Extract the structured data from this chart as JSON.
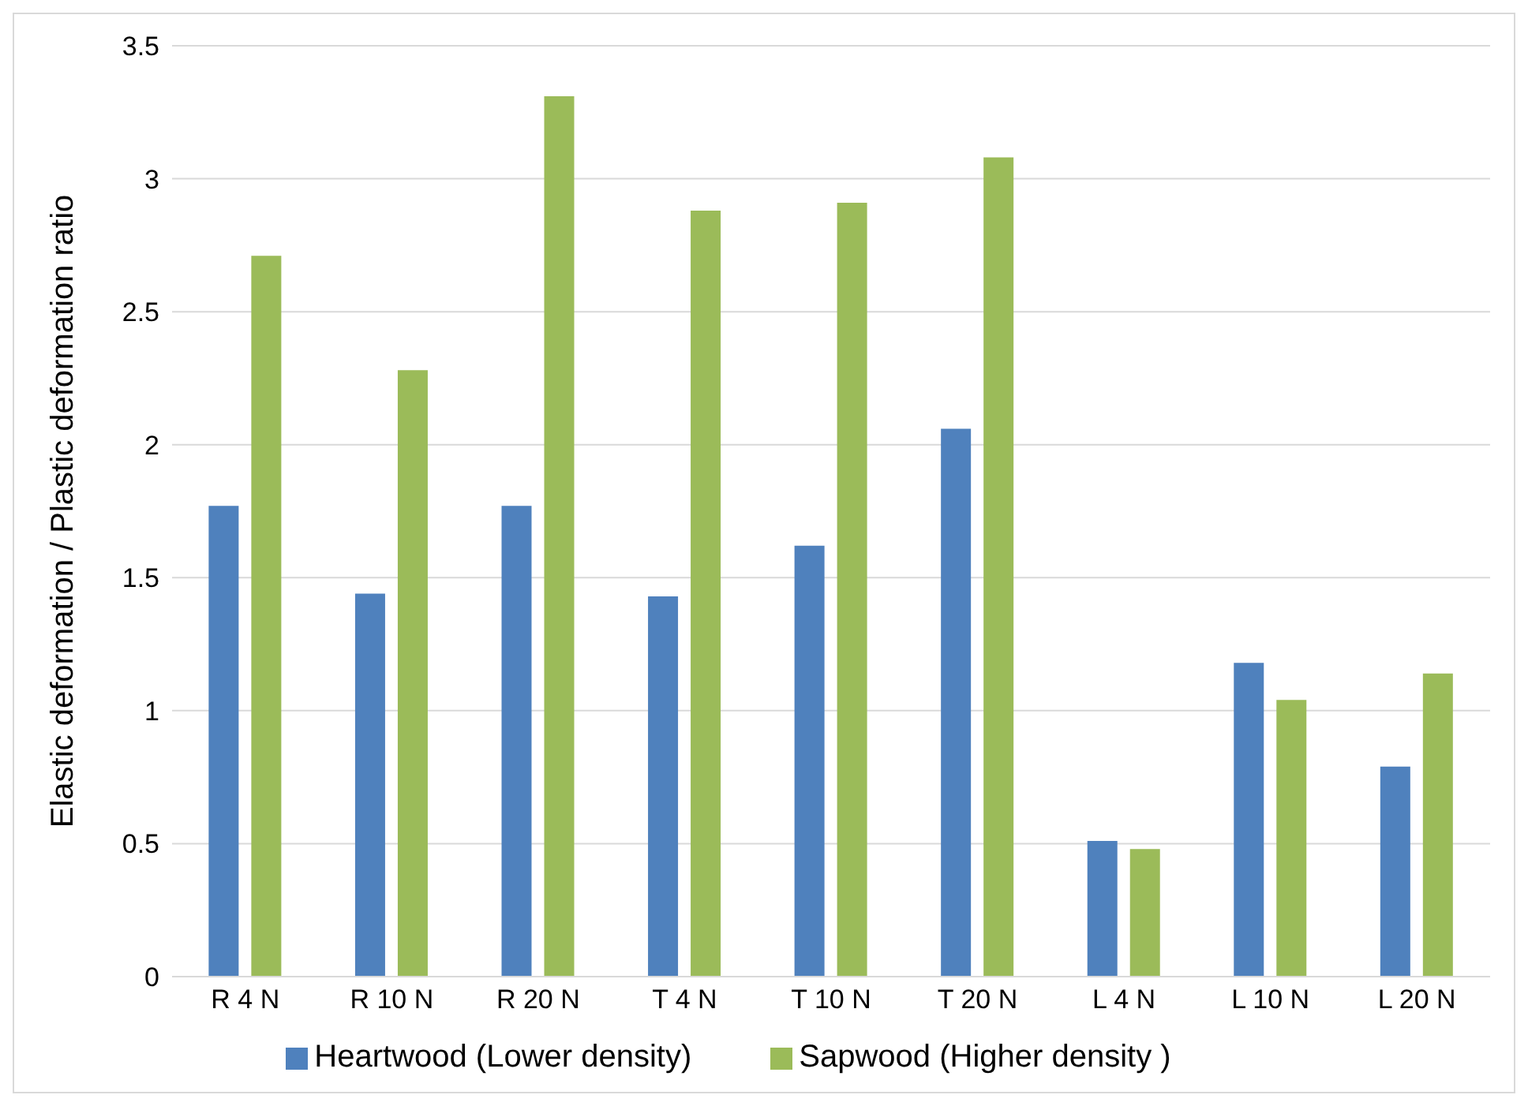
{
  "chart_data": {
    "type": "bar",
    "ylabel": "Elastic deformation / Plastic deformation  ratio",
    "categories": [
      "R 4 N",
      "R 10 N",
      "R 20 N",
      "T 4 N",
      "T 10 N",
      "T 20 N",
      "L 4 N",
      "L 10 N",
      "L 20 N"
    ],
    "series": [
      {
        "name": "Heartwood (Lower density)",
        "color": "#4f81bd",
        "values": [
          1.77,
          1.44,
          1.77,
          1.43,
          1.62,
          2.06,
          0.51,
          1.18,
          0.79
        ]
      },
      {
        "name": "Sapwood (Higher density )",
        "color": "#9bbb59",
        "values": [
          2.71,
          2.28,
          3.31,
          2.88,
          2.91,
          3.08,
          0.48,
          1.04,
          1.14
        ]
      }
    ],
    "ylim": [
      0,
      3.5
    ],
    "yticks": [
      0,
      0.5,
      1,
      1.5,
      2,
      2.5,
      3,
      3.5
    ],
    "grid": "y",
    "legend": "bottom"
  }
}
